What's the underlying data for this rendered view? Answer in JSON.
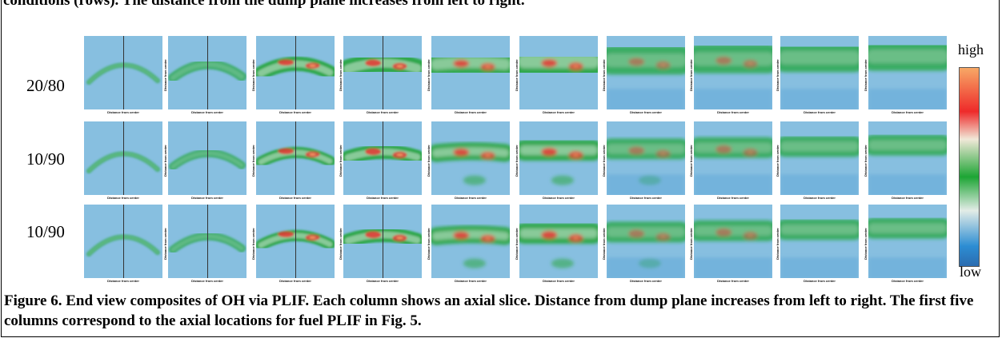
{
  "previous_caption_tail": "conditions (rows). The distance from the dump plane increases from left to right.",
  "rows": [
    {
      "label": "20/80"
    },
    {
      "label": "10/90"
    },
    {
      "label": "10/90"
    }
  ],
  "panel_x_axis_label": "Distance from center",
  "panel_y_axis_label": "Distance from center",
  "colorbar": {
    "high_label": "high",
    "low_label": "low"
  },
  "caption": "Figure 6. End view composites of OH via PLIF. Each column shows an axial slice. Distance from dump plane increases from left to right. The first five columns correspond to the axial locations for fuel PLIF in Fig. 5.",
  "colors": {
    "background_blue": "#87bfe0",
    "low_green": "#1da534",
    "high_red": "#ee2a2a",
    "high_orange": "#f7a866"
  },
  "columns": 10
}
